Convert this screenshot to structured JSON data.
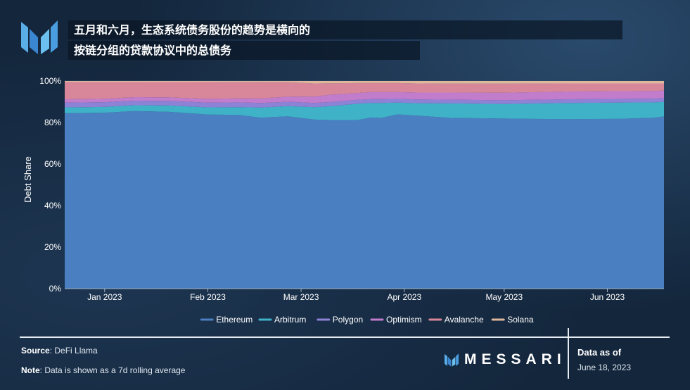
{
  "title": {
    "line1": "五月和六月，生态系统债务股份的趋势是横向的",
    "line2": "按链分组的贷款协议中的总债务"
  },
  "footer": {
    "source_label": "Source",
    "source_value": "DeFi Llama",
    "note_label": "Note",
    "note_value": "Data is shown as a 7d rolling average",
    "brand": "MESSARI",
    "asof_label": "Data as of",
    "asof_date": "June 18, 2023"
  },
  "colors": {
    "Ethereum": "#4a7fc1",
    "Arbitrum": "#3fb2c8",
    "Polygon": "#8d82d6",
    "Optimism": "#c27ccc",
    "Avalanche": "#d8879a",
    "Solana": "#ddb89c"
  },
  "chart_data": {
    "type": "area",
    "stacked": true,
    "ylabel": "Debt Share",
    "ylim": [
      0,
      100
    ],
    "yticks": [
      "0%",
      "20%",
      "40%",
      "60%",
      "80%",
      "100%"
    ],
    "xticks": [
      "Jan 2023",
      "Feb 2023",
      "Mar 2023",
      "Apr 2023",
      "May 2023",
      "Jun 2023"
    ],
    "xtick_dates": [
      "2023-01-01",
      "2023-02-01",
      "2023-03-01",
      "2023-04-01",
      "2023-05-01",
      "2023-06-01"
    ],
    "x": [
      "2022-12-20",
      "2023-01-01",
      "2023-01-10",
      "2023-01-20",
      "2023-02-01",
      "2023-02-10",
      "2023-02-17",
      "2023-02-25",
      "2023-03-05",
      "2023-03-10",
      "2023-03-18",
      "2023-03-22",
      "2023-03-25",
      "2023-03-30",
      "2023-04-05",
      "2023-04-15",
      "2023-05-01",
      "2023-05-20",
      "2023-06-05",
      "2023-06-15",
      "2023-06-18"
    ],
    "legend_position": "bottom",
    "series": [
      {
        "name": "Ethereum",
        "values": [
          84.5,
          84.7,
          85.5,
          85.2,
          83.8,
          83.7,
          82.3,
          83.0,
          81.4,
          81.2,
          81.2,
          82.4,
          82.2,
          83.9,
          83.3,
          82.2,
          81.9,
          81.6,
          81.8,
          82.3,
          82.9
        ]
      },
      {
        "name": "Arbitrum",
        "values": [
          2.8,
          2.8,
          2.8,
          3.0,
          3.5,
          3.7,
          4.9,
          4.9,
          6.0,
          6.7,
          7.8,
          7.0,
          7.2,
          5.7,
          6.0,
          7.0,
          7.0,
          7.8,
          7.8,
          7.4,
          7.0
        ]
      },
      {
        "name": "Polygon",
        "values": [
          2.3,
          2.3,
          2.2,
          2.2,
          2.3,
          2.3,
          2.2,
          2.1,
          2.0,
          2.0,
          1.9,
          1.9,
          1.9,
          1.8,
          1.8,
          1.8,
          1.8,
          1.8,
          1.8,
          1.8,
          1.8
        ]
      },
      {
        "name": "Optimism",
        "values": [
          1.6,
          1.6,
          1.7,
          1.7,
          1.8,
          1.9,
          2.2,
          2.4,
          3.1,
          3.5,
          3.3,
          3.3,
          3.3,
          3.2,
          3.3,
          3.4,
          3.6,
          3.7,
          3.7,
          3.7,
          3.7
        ]
      },
      {
        "name": "Avalanche",
        "values": [
          8.3,
          8.1,
          7.3,
          7.4,
          8.1,
          7.8,
          7.8,
          7.0,
          6.3,
          5.5,
          4.8,
          4.4,
          4.4,
          4.4,
          4.4,
          4.3,
          4.4,
          3.9,
          3.7,
          3.6,
          3.4
        ]
      },
      {
        "name": "Solana",
        "values": [
          0.5,
          0.5,
          0.5,
          0.5,
          0.5,
          0.6,
          0.6,
          0.6,
          1.2,
          1.1,
          1.0,
          1.0,
          1.0,
          1.0,
          1.2,
          1.3,
          1.3,
          1.2,
          1.2,
          1.2,
          1.2
        ]
      }
    ]
  }
}
